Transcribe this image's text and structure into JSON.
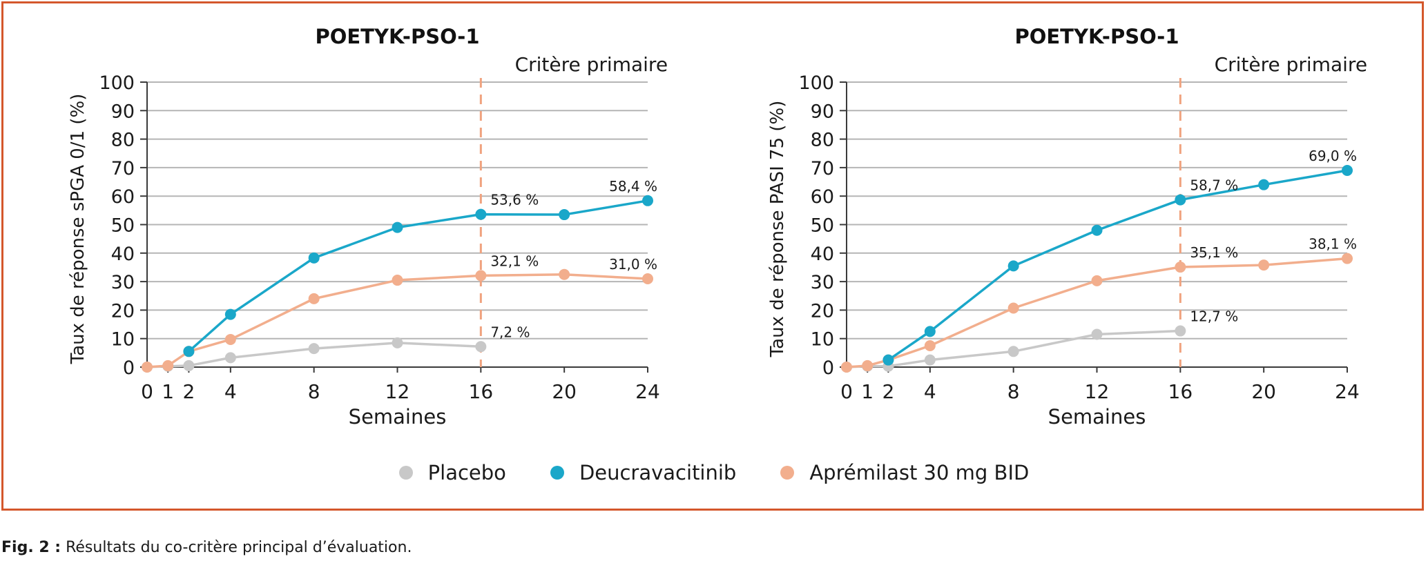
{
  "colors": {
    "border": "#d4572b",
    "grid": "#b5b5b5",
    "axis": "#3a3a3a",
    "primary_line": "#f0a27e"
  },
  "legend": [
    {
      "label": "Placebo",
      "color": "#c8c8c8"
    },
    {
      "label": "Deucravacitinib",
      "color": "#1aa7c9"
    },
    {
      "label": "Aprémilast 30 mg BID",
      "color": "#f2ae8d"
    }
  ],
  "caption": {
    "prefix": "Fig. 2 :",
    "text": " Résultats du co-critère principal d’évaluation."
  },
  "chart_data": [
    {
      "type": "line",
      "title": "POETYK-PSO-1",
      "annotation": "Critère primaire",
      "annotation_x": 16,
      "xlabel": "Semaines",
      "ylabel": "Taux de réponse sPGA 0/1 (%)",
      "xticks": [
        0,
        1,
        2,
        4,
        8,
        12,
        16,
        20,
        24
      ],
      "xlim": [
        0,
        24
      ],
      "yticks": [
        0,
        10,
        20,
        30,
        40,
        50,
        60,
        70,
        80,
        90,
        100
      ],
      "ylim": [
        0,
        100
      ],
      "grid": true,
      "series": [
        {
          "name": "Placebo",
          "color": "#c8c8c8",
          "x": [
            0,
            1,
            2,
            4,
            8,
            12,
            16
          ],
          "y": [
            0,
            0.3,
            0.5,
            3.3,
            6.5,
            8.5,
            7.2
          ],
          "labels": [
            {
              "x": 16,
              "y": 7.2,
              "text": "7,2 %"
            }
          ]
        },
        {
          "name": "Deucravacitinib",
          "color": "#1aa7c9",
          "x": [
            2,
            4,
            8,
            12,
            16,
            20,
            24
          ],
          "y": [
            5.5,
            18.5,
            38.3,
            49,
            53.6,
            53.5,
            58.4
          ],
          "labels": [
            {
              "x": 16,
              "y": 53.6,
              "text": "53,6 %"
            },
            {
              "x": 24,
              "y": 58.4,
              "text": "58,4 %"
            }
          ]
        },
        {
          "name": "Aprémilast 30 mg BID",
          "color": "#f2ae8d",
          "x": [
            0,
            1,
            2,
            4,
            8,
            12,
            16,
            20,
            24
          ],
          "y": [
            0,
            0.5,
            5.5,
            9.7,
            24,
            30.5,
            32.1,
            32.5,
            31
          ],
          "labels": [
            {
              "x": 16,
              "y": 32.1,
              "text": "32,1 %"
            },
            {
              "x": 24,
              "y": 31.0,
              "text": "31,0 %"
            }
          ]
        }
      ]
    },
    {
      "type": "line",
      "title": "POETYK-PSO-1",
      "annotation": "Critère primaire",
      "annotation_x": 16,
      "xlabel": "Semaines",
      "ylabel": "Taux de réponse PASI 75 (%)",
      "xticks": [
        0,
        1,
        2,
        4,
        8,
        12,
        16,
        20,
        24
      ],
      "xlim": [
        0,
        24
      ],
      "yticks": [
        0,
        10,
        20,
        30,
        40,
        50,
        60,
        70,
        80,
        90,
        100
      ],
      "ylim": [
        0,
        100
      ],
      "grid": true,
      "series": [
        {
          "name": "Placebo",
          "color": "#c8c8c8",
          "x": [
            0,
            1,
            2,
            4,
            8,
            12,
            16
          ],
          "y": [
            0,
            0.3,
            0.3,
            2.5,
            5.5,
            11.5,
            12.7
          ],
          "labels": [
            {
              "x": 16,
              "y": 12.7,
              "text": "12,7 %"
            }
          ]
        },
        {
          "name": "Deucravacitinib",
          "color": "#1aa7c9",
          "x": [
            2,
            4,
            8,
            12,
            16,
            20,
            24
          ],
          "y": [
            2.5,
            12.5,
            35.5,
            48,
            58.7,
            64,
            69
          ],
          "labels": [
            {
              "x": 16,
              "y": 58.7,
              "text": "58,7 %"
            },
            {
              "x": 24,
              "y": 69.0,
              "text": "69,0 %"
            }
          ]
        },
        {
          "name": "Aprémilast 30 mg BID",
          "color": "#f2ae8d",
          "x": [
            0,
            1,
            2,
            4,
            8,
            12,
            16,
            20,
            24
          ],
          "y": [
            0,
            0.5,
            2.5,
            7.5,
            20.7,
            30.3,
            35.1,
            35.8,
            38.1
          ],
          "labels": [
            {
              "x": 16,
              "y": 35.1,
              "text": "35,1 %"
            },
            {
              "x": 24,
              "y": 38.1,
              "text": "38,1 %"
            }
          ]
        }
      ]
    }
  ]
}
